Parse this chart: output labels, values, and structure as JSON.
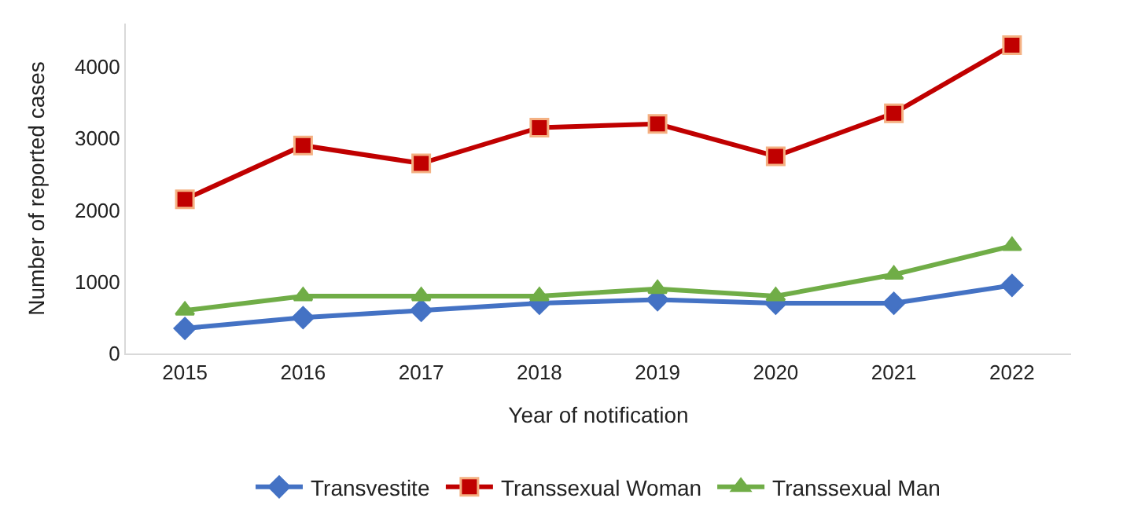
{
  "chart_data": {
    "type": "line",
    "xlabel": "Year of notification",
    "ylabel": "Number of reported cases",
    "categories": [
      "2015",
      "2016",
      "2017",
      "2018",
      "2019",
      "2020",
      "2021",
      "2022"
    ],
    "series": [
      {
        "name": "Transvestite",
        "color": "#4472c4",
        "marker": "diamond",
        "values": [
          350,
          500,
          600,
          700,
          750,
          700,
          700,
          950
        ]
      },
      {
        "name": "Transsexual Woman",
        "color": "#c00000",
        "marker": "square",
        "values": [
          2150,
          2900,
          2650,
          3150,
          3200,
          2750,
          3350,
          4300
        ]
      },
      {
        "name": "Transsexual Man",
        "color": "#70ad47",
        "marker": "triangle",
        "values": [
          600,
          800,
          800,
          800,
          900,
          800,
          1100,
          1500
        ]
      }
    ],
    "ylim": [
      0,
      4600
    ],
    "yticks": [
      0,
      1000,
      2000,
      3000,
      4000
    ],
    "grid": false,
    "legend": "bottom"
  }
}
